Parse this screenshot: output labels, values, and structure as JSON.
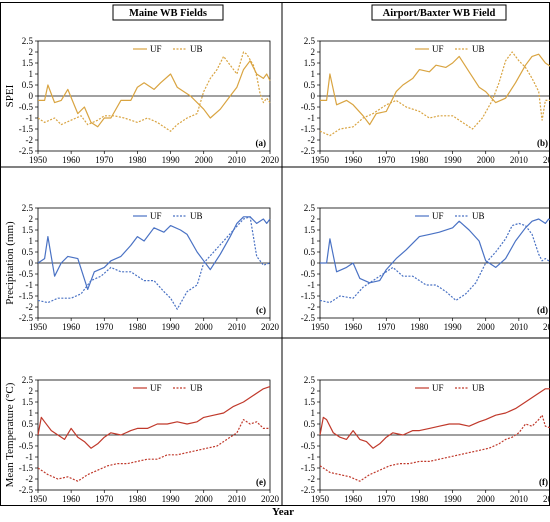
{
  "figure": {
    "col_titles": [
      "Maine WB Fields",
      "Airport/Baxter WB Field"
    ],
    "row_ylabels": [
      "SPEI",
      "Precipitation (mm)",
      "Mean Temperature (°C)"
    ],
    "xlabel": "Year",
    "xticks": [
      "1950",
      "1960",
      "1970",
      "1980",
      "1990",
      "2000",
      "2010",
      "2020"
    ],
    "yticks": [
      "2.5",
      "2",
      "1.5",
      "1",
      "0.5",
      "0",
      "-0.5",
      "-1",
      "-1.5",
      "-2",
      "-2.5"
    ],
    "row_colors": [
      "#D9A441",
      "#4A72C4",
      "#C0392B"
    ]
  },
  "chart_data": [
    {
      "type": "line",
      "panel_label": "(a)",
      "xlim": [
        1950,
        2020
      ],
      "ylim": [
        -2.5,
        2.5
      ],
      "legend": [
        "UF",
        "UB"
      ],
      "series": [
        {
          "name": "UF",
          "style": "solid",
          "x": [
            1950,
            1952,
            1953,
            1955,
            1957,
            1959,
            1962,
            1964,
            1966,
            1968,
            1970,
            1972,
            1975,
            1978,
            1980,
            1982,
            1985,
            1987,
            1990,
            1992,
            1994,
            1996,
            1998,
            2000,
            2002,
            2005,
            2008,
            2010,
            2012,
            2014,
            2016,
            2018,
            2019,
            2020
          ],
          "y": [
            -0.2,
            -0.2,
            0.5,
            -0.3,
            -0.2,
            0.3,
            -0.8,
            -0.5,
            -1.2,
            -1.4,
            -1.0,
            -1.0,
            -0.2,
            -0.2,
            0.4,
            0.6,
            0.3,
            0.6,
            1.0,
            0.4,
            0.2,
            0.0,
            -0.3,
            -0.6,
            -1.0,
            -0.6,
            0.0,
            0.4,
            1.2,
            1.6,
            1.0,
            0.8,
            1.0,
            0.7
          ]
        },
        {
          "name": "UB",
          "style": "dotted",
          "x": [
            1950,
            1952,
            1955,
            1957,
            1960,
            1963,
            1965,
            1968,
            1970,
            1973,
            1976,
            1980,
            1983,
            1986,
            1988,
            1990,
            1992,
            1995,
            1998,
            2000,
            2002,
            2004,
            2006,
            2008,
            2010,
            2012,
            2013,
            2015,
            2016,
            2017,
            2018,
            2019,
            2020
          ],
          "y": [
            -1.0,
            -1.2,
            -1.0,
            -1.3,
            -1.1,
            -0.9,
            -1.3,
            -1.1,
            -0.9,
            -0.9,
            -1.0,
            -1.2,
            -1.0,
            -1.2,
            -1.4,
            -1.6,
            -1.3,
            -1.0,
            -0.8,
            0.2,
            0.8,
            1.2,
            1.8,
            1.4,
            1.0,
            2.0,
            1.9,
            1.4,
            0.9,
            0.1,
            -0.3,
            -0.1,
            -0.3
          ]
        }
      ]
    },
    {
      "type": "line",
      "panel_label": "(b)",
      "xlim": [
        1950,
        2020
      ],
      "ylim": [
        -2.5,
        2.5
      ],
      "legend": [
        "UF",
        "UB"
      ],
      "series": [
        {
          "name": "UF",
          "style": "solid",
          "x": [
            1950,
            1952,
            1953,
            1955,
            1958,
            1960,
            1963,
            1965,
            1967,
            1970,
            1973,
            1975,
            1978,
            1980,
            1983,
            1985,
            1988,
            1990,
            1992,
            1995,
            1998,
            2000,
            2003,
            2006,
            2009,
            2012,
            2014,
            2016,
            2018,
            2020
          ],
          "y": [
            -0.2,
            -0.2,
            1.0,
            -0.4,
            -0.2,
            -0.4,
            -0.9,
            -1.3,
            -0.8,
            -0.7,
            0.2,
            0.5,
            0.8,
            1.2,
            1.1,
            1.4,
            1.3,
            1.5,
            1.8,
            1.1,
            0.4,
            0.2,
            -0.3,
            -0.1,
            0.6,
            1.4,
            1.8,
            1.9,
            1.5,
            1.3
          ]
        },
        {
          "name": "UB",
          "style": "dotted",
          "x": [
            1950,
            1953,
            1956,
            1960,
            1963,
            1966,
            1970,
            1973,
            1976,
            1980,
            1983,
            1986,
            1990,
            1993,
            1996,
            1999,
            2002,
            2004,
            2006,
            2008,
            2010,
            2012,
            2014,
            2016,
            2017,
            2018,
            2020
          ],
          "y": [
            -1.6,
            -1.8,
            -1.5,
            -1.4,
            -1.0,
            -0.8,
            -0.4,
            -0.2,
            -0.5,
            -0.7,
            -1.0,
            -0.9,
            -0.9,
            -1.2,
            -1.5,
            -1.0,
            -0.2,
            0.6,
            1.6,
            2.0,
            1.6,
            1.3,
            0.8,
            0.2,
            -1.1,
            -0.2,
            -0.2
          ]
        }
      ]
    },
    {
      "type": "line",
      "panel_label": "(c)",
      "xlim": [
        1950,
        2020
      ],
      "ylim": [
        -2.5,
        2.5
      ],
      "legend": [
        "UF",
        "UB"
      ],
      "series": [
        {
          "name": "UF",
          "style": "solid",
          "x": [
            1950,
            1952,
            1953,
            1955,
            1957,
            1959,
            1962,
            1965,
            1967,
            1970,
            1972,
            1975,
            1978,
            1980,
            1982,
            1985,
            1988,
            1990,
            1993,
            1995,
            1998,
            2000,
            2002,
            2005,
            2008,
            2010,
            2012,
            2014,
            2016,
            2018,
            2019,
            2020
          ],
          "y": [
            0.0,
            0.2,
            1.2,
            -0.6,
            0.0,
            0.3,
            0.2,
            -1.2,
            -0.4,
            -0.2,
            0.1,
            0.3,
            0.8,
            1.2,
            1.0,
            1.6,
            1.4,
            1.7,
            1.5,
            1.3,
            0.5,
            0.1,
            -0.3,
            0.4,
            1.2,
            1.8,
            2.1,
            2.1,
            1.8,
            2.0,
            1.8,
            2.0
          ]
        },
        {
          "name": "UB",
          "style": "dotted",
          "x": [
            1950,
            1953,
            1956,
            1960,
            1963,
            1966,
            1969,
            1972,
            1975,
            1978,
            1982,
            1985,
            1988,
            1990,
            1992,
            1995,
            1998,
            2000,
            2003,
            2006,
            2009,
            2012,
            2014,
            2016,
            2018,
            2020
          ],
          "y": [
            -1.7,
            -1.8,
            -1.6,
            -1.6,
            -1.4,
            -0.8,
            -0.6,
            -0.2,
            -0.4,
            -0.4,
            -0.8,
            -0.8,
            -1.3,
            -1.6,
            -2.1,
            -1.3,
            -1.0,
            0.0,
            0.5,
            1.0,
            1.5,
            2.0,
            2.1,
            0.3,
            -0.1,
            0.0
          ]
        }
      ]
    },
    {
      "type": "line",
      "panel_label": "(d)",
      "xlim": [
        1950,
        2020
      ],
      "ylim": [
        -2.5,
        2.5
      ],
      "legend": [
        "UF",
        "UB"
      ],
      "series": [
        {
          "name": "UF",
          "style": "solid",
          "x": [
            1950,
            1952,
            1953,
            1955,
            1958,
            1960,
            1962,
            1965,
            1968,
            1970,
            1973,
            1976,
            1980,
            1983,
            1986,
            1990,
            1992,
            1995,
            1998,
            2000,
            2003,
            2006,
            2009,
            2012,
            2014,
            2016,
            2018,
            2019,
            2020
          ],
          "y": [
            0.0,
            0.0,
            1.1,
            -0.4,
            -0.2,
            0.0,
            -0.7,
            -0.9,
            -0.8,
            -0.3,
            0.2,
            0.6,
            1.2,
            1.3,
            1.4,
            1.6,
            1.9,
            1.5,
            1.0,
            0.1,
            -0.2,
            0.2,
            1.0,
            1.6,
            1.9,
            2.0,
            1.8,
            2.0,
            1.9
          ]
        },
        {
          "name": "UB",
          "style": "dotted",
          "x": [
            1950,
            1953,
            1956,
            1960,
            1963,
            1966,
            1969,
            1972,
            1975,
            1978,
            1982,
            1985,
            1988,
            1991,
            1994,
            1997,
            2000,
            2003,
            2006,
            2008,
            2010,
            2012,
            2014,
            2016,
            2017,
            2018,
            2020
          ],
          "y": [
            -1.7,
            -1.8,
            -1.5,
            -1.6,
            -1.1,
            -0.8,
            -0.5,
            -0.2,
            -0.6,
            -0.6,
            -1.0,
            -1.0,
            -1.3,
            -1.7,
            -1.4,
            -0.9,
            0.0,
            0.5,
            1.1,
            1.7,
            1.8,
            1.7,
            1.3,
            0.4,
            0.1,
            0.2,
            0.0
          ]
        }
      ]
    },
    {
      "type": "line",
      "panel_label": "(e)",
      "xlim": [
        1950,
        2020
      ],
      "ylim": [
        -2.5,
        2.5
      ],
      "legend": [
        "UF",
        "UB"
      ],
      "series": [
        {
          "name": "UF",
          "style": "solid",
          "x": [
            1950,
            1951,
            1952,
            1954,
            1956,
            1958,
            1960,
            1962,
            1964,
            1966,
            1968,
            1970,
            1972,
            1975,
            1978,
            1980,
            1983,
            1986,
            1989,
            1992,
            1995,
            1998,
            2000,
            2003,
            2006,
            2009,
            2012,
            2015,
            2018,
            2020
          ],
          "y": [
            0.0,
            0.8,
            0.6,
            0.2,
            0.0,
            -0.2,
            0.3,
            -0.1,
            -0.3,
            -0.6,
            -0.4,
            -0.1,
            0.1,
            0.0,
            0.2,
            0.3,
            0.3,
            0.5,
            0.5,
            0.6,
            0.5,
            0.6,
            0.8,
            0.9,
            1.0,
            1.3,
            1.5,
            1.8,
            2.1,
            2.2
          ]
        },
        {
          "name": "UB",
          "style": "dotted",
          "x": [
            1950,
            1953,
            1956,
            1959,
            1962,
            1965,
            1968,
            1971,
            1974,
            1977,
            1980,
            1983,
            1986,
            1989,
            1992,
            1995,
            1998,
            2001,
            2004,
            2006,
            2008,
            2010,
            2012,
            2014,
            2016,
            2018,
            2020
          ],
          "y": [
            -1.5,
            -1.8,
            -2.0,
            -1.9,
            -2.1,
            -1.8,
            -1.6,
            -1.4,
            -1.3,
            -1.3,
            -1.2,
            -1.1,
            -1.1,
            -0.9,
            -0.9,
            -0.8,
            -0.7,
            -0.6,
            -0.5,
            -0.3,
            -0.1,
            0.1,
            0.7,
            0.5,
            0.6,
            0.3,
            0.3
          ]
        }
      ]
    },
    {
      "type": "line",
      "panel_label": "(f)",
      "xlim": [
        1950,
        2020
      ],
      "ylim": [
        -2.5,
        2.5
      ],
      "legend": [
        "UF",
        "UB"
      ],
      "series": [
        {
          "name": "UF",
          "style": "solid",
          "x": [
            1950,
            1951,
            1952,
            1954,
            1956,
            1958,
            1960,
            1962,
            1964,
            1966,
            1968,
            1970,
            1972,
            1975,
            1978,
            1980,
            1983,
            1986,
            1989,
            1992,
            1995,
            1998,
            2000,
            2003,
            2006,
            2009,
            2012,
            2015,
            2018,
            2020
          ],
          "y": [
            0.0,
            0.8,
            0.7,
            0.1,
            -0.1,
            -0.2,
            0.2,
            -0.2,
            -0.3,
            -0.6,
            -0.4,
            -0.1,
            0.1,
            0.0,
            0.2,
            0.2,
            0.3,
            0.4,
            0.5,
            0.5,
            0.4,
            0.6,
            0.7,
            0.9,
            1.0,
            1.2,
            1.5,
            1.8,
            2.1,
            2.1
          ]
        },
        {
          "name": "UB",
          "style": "dotted",
          "x": [
            1950,
            1953,
            1956,
            1959,
            1962,
            1965,
            1968,
            1971,
            1974,
            1977,
            1980,
            1983,
            1986,
            1989,
            1992,
            1995,
            1998,
            2001,
            2004,
            2006,
            2008,
            2010,
            2012,
            2014,
            2016,
            2017,
            2018,
            2020
          ],
          "y": [
            -1.4,
            -1.7,
            -1.8,
            -1.9,
            -2.1,
            -1.8,
            -1.6,
            -1.4,
            -1.3,
            -1.3,
            -1.2,
            -1.2,
            -1.1,
            -1.0,
            -0.9,
            -0.8,
            -0.7,
            -0.6,
            -0.4,
            -0.2,
            -0.1,
            0.1,
            0.5,
            0.4,
            0.7,
            0.9,
            0.4,
            0.3
          ]
        }
      ]
    }
  ]
}
